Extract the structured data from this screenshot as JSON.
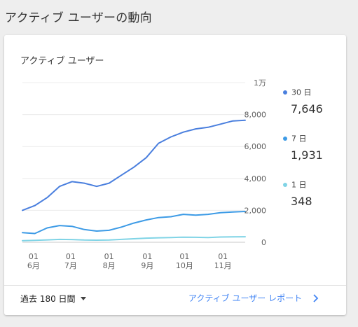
{
  "page": {
    "title": "アクティブ ユーザーの動向"
  },
  "card": {
    "title": "アクティブ ユーザー",
    "footer": {
      "range_label": "過去 180 日間",
      "report_link": "アクティブ ユーザー レポート"
    }
  },
  "legend": [
    {
      "label": "30 日",
      "value": "7,646",
      "color": "#4a7fde"
    },
    {
      "label": "7 日",
      "value": "1,931",
      "color": "#3d9be6"
    },
    {
      "label": "1 日",
      "value": "348",
      "color": "#80d4e6"
    }
  ],
  "icons": {
    "range_caret": "caret-down-icon",
    "report_chevron": "chevron-right-icon"
  },
  "chart_data": {
    "type": "line",
    "title": "",
    "xlabel": "",
    "ylabel": "",
    "ylim": [
      0,
      10000
    ],
    "yticks": [
      {
        "value": 0,
        "label": "0"
      },
      {
        "value": 2000,
        "label": "2,000"
      },
      {
        "value": 4000,
        "label": "4,000"
      },
      {
        "value": 6000,
        "label": "6,000"
      },
      {
        "value": 8000,
        "label": "8,000"
      },
      {
        "value": 10000,
        "label": "1万"
      }
    ],
    "xticks": [
      {
        "day": 9,
        "day_label": "01",
        "month_label": "6月"
      },
      {
        "day": 39,
        "day_label": "01",
        "month_label": "7月"
      },
      {
        "day": 70,
        "day_label": "01",
        "month_label": "8月"
      },
      {
        "day": 101,
        "day_label": "01",
        "month_label": "9月"
      },
      {
        "day": 131,
        "day_label": "01",
        "month_label": "10月"
      },
      {
        "day": 162,
        "day_label": "01",
        "month_label": "11月"
      }
    ],
    "x_range": [
      0,
      180
    ],
    "grid": true,
    "legend_position": "right",
    "series": [
      {
        "name": "30 日",
        "color": "#4a7fde",
        "x": [
          0,
          10,
          20,
          30,
          40,
          50,
          60,
          70,
          80,
          90,
          100,
          110,
          120,
          130,
          140,
          150,
          160,
          170,
          180
        ],
        "values": [
          2000,
          2300,
          2800,
          3500,
          3800,
          3700,
          3500,
          3700,
          4200,
          4700,
          5300,
          6200,
          6600,
          6900,
          7100,
          7200,
          7400,
          7600,
          7646
        ]
      },
      {
        "name": "7 日",
        "color": "#3d9be6",
        "x": [
          0,
          10,
          20,
          30,
          40,
          50,
          60,
          70,
          80,
          90,
          100,
          110,
          120,
          130,
          140,
          150,
          160,
          170,
          180
        ],
        "values": [
          600,
          550,
          900,
          1050,
          1000,
          800,
          700,
          750,
          950,
          1200,
          1400,
          1550,
          1600,
          1750,
          1700,
          1750,
          1850,
          1900,
          1931
        ]
      },
      {
        "name": "1 日",
        "color": "#80d4e6",
        "x": [
          0,
          10,
          20,
          30,
          40,
          50,
          60,
          70,
          80,
          90,
          100,
          110,
          120,
          130,
          140,
          150,
          160,
          170,
          180
        ],
        "values": [
          100,
          120,
          150,
          180,
          170,
          140,
          130,
          140,
          180,
          220,
          260,
          280,
          300,
          320,
          310,
          300,
          330,
          340,
          348
        ]
      }
    ]
  }
}
